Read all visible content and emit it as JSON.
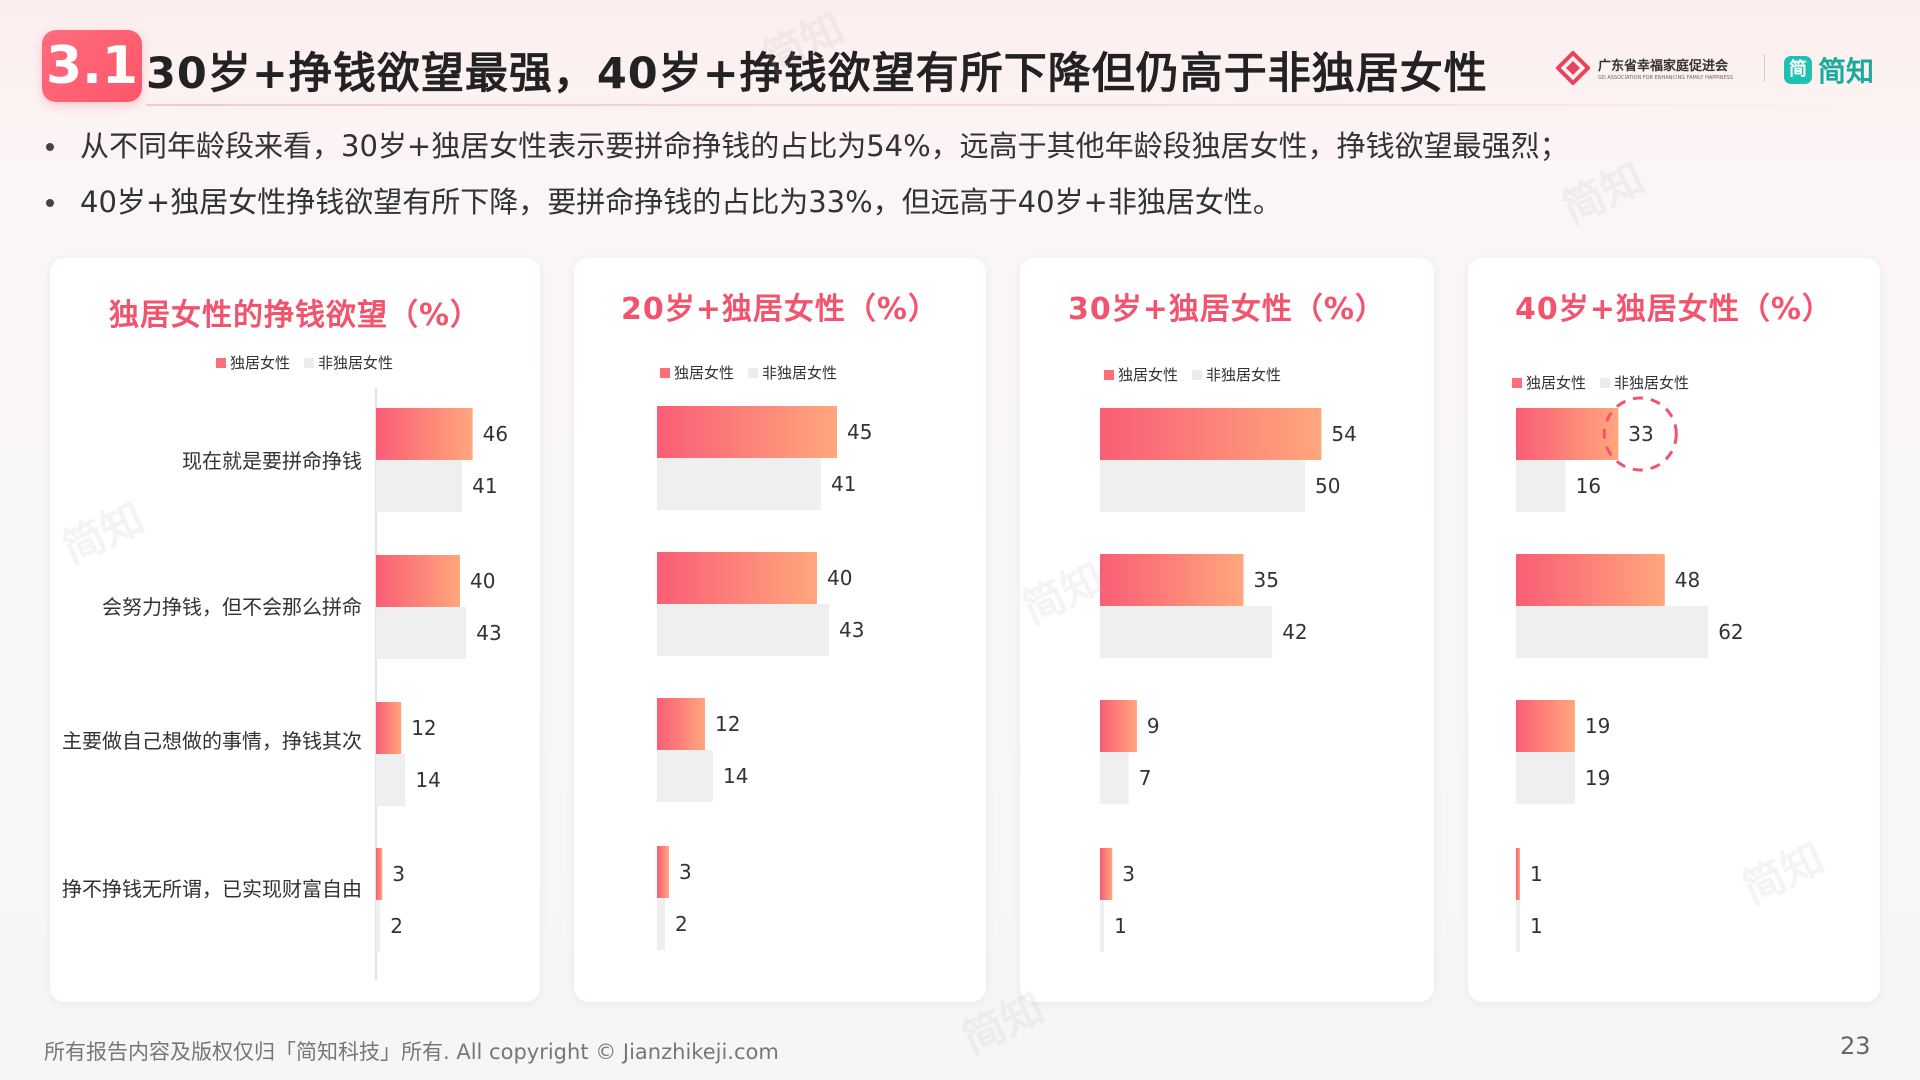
{
  "header": {
    "section_number": "3.1",
    "title": "30岁+挣钱欲望最强，40岁+挣钱欲望有所下降但仍高于非独居女性",
    "org_logo_cn": "广东省幸福家庭促进会",
    "org_logo_en": "GD ASSOCIATION FOR ENHANCING FAMILY HAPPINESS",
    "brand_logo_mark": "简",
    "brand_logo_text": "简知"
  },
  "bullets": [
    "从不同年龄段来看，30岁+独居女性表示要拼命挣钱的占比为54%，远高于其他年龄段独居女性，挣钱欲望最强烈；",
    "40岁+独居女性挣钱欲望有所下降，要拼命挣钱的占比为33%，但远高于40岁+非独居女性。"
  ],
  "legend": {
    "series_a": "独居女性",
    "series_b": "非独居女性"
  },
  "colors": {
    "accent": "#f2546e",
    "bar_a_start": "#fa5d76",
    "bar_a_end": "#ffa77c",
    "bar_b": "#efefef"
  },
  "chart_data": [
    {
      "type": "bar",
      "orientation": "horizontal",
      "title": "独居女性的挣钱欲望（%）",
      "categories": [
        "现在就是要拼命挣钱",
        "会努力挣钱，但不会那么拼命",
        "主要做自己想做的事情，挣钱其次",
        "挣不挣钱无所谓，已实现财富自由"
      ],
      "series": [
        {
          "name": "独居女性",
          "values": [
            46,
            40,
            12,
            3
          ]
        },
        {
          "name": "非独居女性",
          "values": [
            41,
            43,
            14,
            2
          ]
        }
      ]
    },
    {
      "type": "bar",
      "orientation": "horizontal",
      "title": "20岁+独居女性（%）",
      "categories": [
        "现在就是要拼命挣钱",
        "会努力挣钱，但不会那么拼命",
        "主要做自己想做的事情，挣钱其次",
        "挣不挣钱无所谓，已实现财富自由"
      ],
      "series": [
        {
          "name": "独居女性",
          "values": [
            45,
            40,
            12,
            3
          ]
        },
        {
          "name": "非独居女性",
          "values": [
            41,
            43,
            14,
            2
          ]
        }
      ]
    },
    {
      "type": "bar",
      "orientation": "horizontal",
      "title": "30岁+独居女性（%）",
      "categories": [
        "现在就是要拼命挣钱",
        "会努力挣钱，但不会那么拼命",
        "主要做自己想做的事情，挣钱其次",
        "挣不挣钱无所谓，已实现财富自由"
      ],
      "series": [
        {
          "name": "独居女性",
          "values": [
            54,
            35,
            9,
            3
          ]
        },
        {
          "name": "非独居女性",
          "values": [
            50,
            42,
            7,
            1
          ]
        }
      ]
    },
    {
      "type": "bar",
      "orientation": "horizontal",
      "title": "40岁+独居女性（%）",
      "categories": [
        "现在就是要拼命挣钱",
        "会努力挣钱，但不会那么拼命",
        "主要做自己想做的事情，挣钱其次",
        "挣不挣钱无所谓，已实现财富自由"
      ],
      "series": [
        {
          "name": "独居女性",
          "values": [
            33,
            48,
            19,
            1
          ]
        },
        {
          "name": "非独居女性",
          "values": [
            16,
            62,
            19,
            1
          ]
        }
      ],
      "highlight": {
        "series": 0,
        "category": 0
      }
    }
  ],
  "footer": {
    "copyright": "所有报告内容及版权仅归「简知科技」所有.   All copyright © Jianzhikeji.com",
    "page_number": "23"
  },
  "watermark_text": "简知"
}
